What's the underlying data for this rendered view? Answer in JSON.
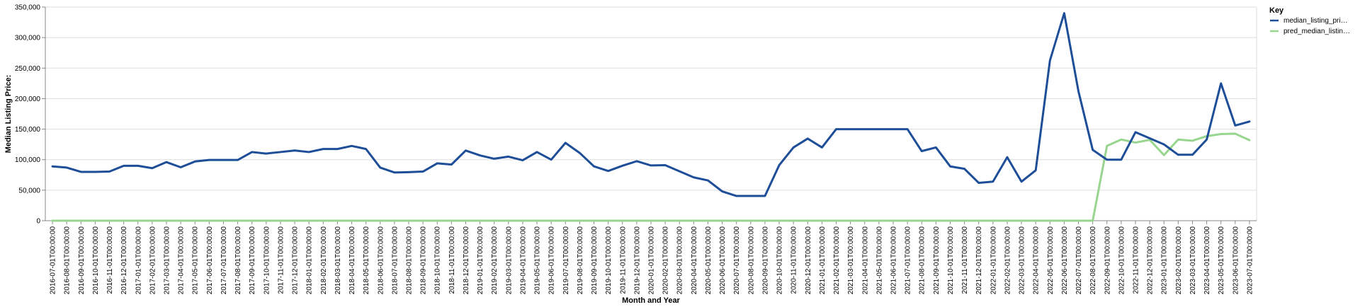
{
  "chart_data": {
    "type": "line",
    "title": "",
    "xlabel": "Month and Year",
    "ylabel": "Median Listing Price:",
    "ylim": [
      0,
      350000
    ],
    "yticks": [
      0,
      50000,
      100000,
      150000,
      200000,
      250000,
      300000,
      350000
    ],
    "ytick_labels": [
      "0",
      "50,000",
      "100,000",
      "150,000",
      "200,000",
      "250,000",
      "300,000",
      "350,000"
    ],
    "grid": true,
    "legend": {
      "title": "Key",
      "placement": "right"
    },
    "categories": [
      "2016-07-01T00:00:00",
      "2016-08-01T00:00:00",
      "2016-09-01T00:00:00",
      "2016-10-01T00:00:00",
      "2016-11-01T00:00:00",
      "2016-12-01T00:00:00",
      "2017-01-01T00:00:00",
      "2017-02-01T00:00:00",
      "2017-03-01T00:00:00",
      "2017-04-01T00:00:00",
      "2017-05-01T00:00:00",
      "2017-06-01T00:00:00",
      "2017-07-01T00:00:00",
      "2017-08-01T00:00:00",
      "2017-09-01T00:00:00",
      "2017-10-01T00:00:00",
      "2017-11-01T00:00:00",
      "2017-12-01T00:00:00",
      "2018-01-01T00:00:00",
      "2018-02-01T00:00:00",
      "2018-03-01T00:00:00",
      "2018-04-01T00:00:00",
      "2018-05-01T00:00:00",
      "2018-06-01T00:00:00",
      "2018-07-01T00:00:00",
      "2018-08-01T00:00:00",
      "2018-09-01T00:00:00",
      "2018-10-01T00:00:00",
      "2018-11-01T00:00:00",
      "2018-12-01T00:00:00",
      "2019-01-01T00:00:00",
      "2019-02-01T00:00:00",
      "2019-03-01T00:00:00",
      "2019-04-01T00:00:00",
      "2019-05-01T00:00:00",
      "2019-06-01T00:00:00",
      "2019-07-01T00:00:00",
      "2019-08-01T00:00:00",
      "2019-09-01T00:00:00",
      "2019-10-01T00:00:00",
      "2019-11-01T00:00:00",
      "2019-12-01T00:00:00",
      "2020-01-01T00:00:00",
      "2020-02-01T00:00:00",
      "2020-03-01T00:00:00",
      "2020-04-01T00:00:00",
      "2020-05-01T00:00:00",
      "2020-06-01T00:00:00",
      "2020-07-01T00:00:00",
      "2020-08-01T00:00:00",
      "2020-09-01T00:00:00",
      "2020-10-01T00:00:00",
      "2020-11-01T00:00:00",
      "2020-12-01T00:00:00",
      "2021-01-01T00:00:00",
      "2021-02-01T00:00:00",
      "2021-03-01T00:00:00",
      "2021-04-01T00:00:00",
      "2021-05-01T00:00:00",
      "2021-06-01T00:00:00",
      "2021-07-01T00:00:00",
      "2021-08-01T00:00:00",
      "2021-09-01T00:00:00",
      "2021-10-01T00:00:00",
      "2021-11-01T00:00:00",
      "2021-12-01T00:00:00",
      "2022-01-01T00:00:00",
      "2022-02-01T00:00:00",
      "2022-03-01T00:00:00",
      "2022-04-01T00:00:00",
      "2022-05-01T00:00:00",
      "2022-06-01T00:00:00",
      "2022-07-01T00:00:00",
      "2022-08-01T00:00:00",
      "2022-09-01T00:00:00",
      "2022-10-01T00:00:00",
      "2022-11-01T00:00:00",
      "2022-12-01T00:00:00",
      "2023-01-01T00:00:00",
      "2023-02-01T00:00:00",
      "2023-03-01T00:00:00",
      "2023-04-01T00:00:00",
      "2023-05-01T00:00:00",
      "2023-06-01T00:00:00",
      "2023-07-01T00:00:00"
    ],
    "series": [
      {
        "name": "median_listing_pri…",
        "color": "#1f4e99",
        "values": [
          89000,
          87000,
          80000,
          80000,
          80500,
          90000,
          90000,
          86000,
          96000,
          87500,
          97000,
          99500,
          99500,
          99500,
          112500,
          110000,
          112500,
          115000,
          112500,
          117500,
          117500,
          122500,
          117500,
          87000,
          79000,
          79500,
          80500,
          94000,
          92000,
          115000,
          107000,
          101500,
          105000,
          99000,
          112500,
          100000,
          127500,
          111000,
          89000,
          81500,
          90000,
          97500,
          90500,
          91000,
          81000,
          71000,
          66000,
          48000,
          40500,
          40500,
          40500,
          91000,
          120000,
          134500,
          120000,
          150000,
          150000,
          150000,
          150000,
          150000,
          150000,
          114000,
          120000,
          89000,
          85000,
          62000,
          64000,
          104000,
          64000,
          82500,
          262500,
          340000,
          212000,
          116000,
          100000,
          100000,
          145000,
          135000,
          125000,
          108000,
          108000,
          133000,
          225000,
          156000,
          162500
        ]
      },
      {
        "name": "pred_median_listin…",
        "color": "#98d690",
        "values": [
          0,
          0,
          0,
          0,
          0,
          0,
          0,
          0,
          0,
          0,
          0,
          0,
          0,
          0,
          0,
          0,
          0,
          0,
          0,
          0,
          0,
          0,
          0,
          0,
          0,
          0,
          0,
          0,
          0,
          0,
          0,
          0,
          0,
          0,
          0,
          0,
          0,
          0,
          0,
          0,
          0,
          0,
          0,
          0,
          0,
          0,
          0,
          0,
          0,
          0,
          0,
          0,
          0,
          0,
          0,
          0,
          0,
          0,
          0,
          0,
          0,
          0,
          0,
          0,
          0,
          0,
          0,
          0,
          0,
          0,
          0,
          0,
          0,
          0,
          122500,
          133000,
          128000,
          132500,
          107500,
          133000,
          131000,
          138500,
          142000,
          142500,
          132000
        ]
      }
    ]
  }
}
